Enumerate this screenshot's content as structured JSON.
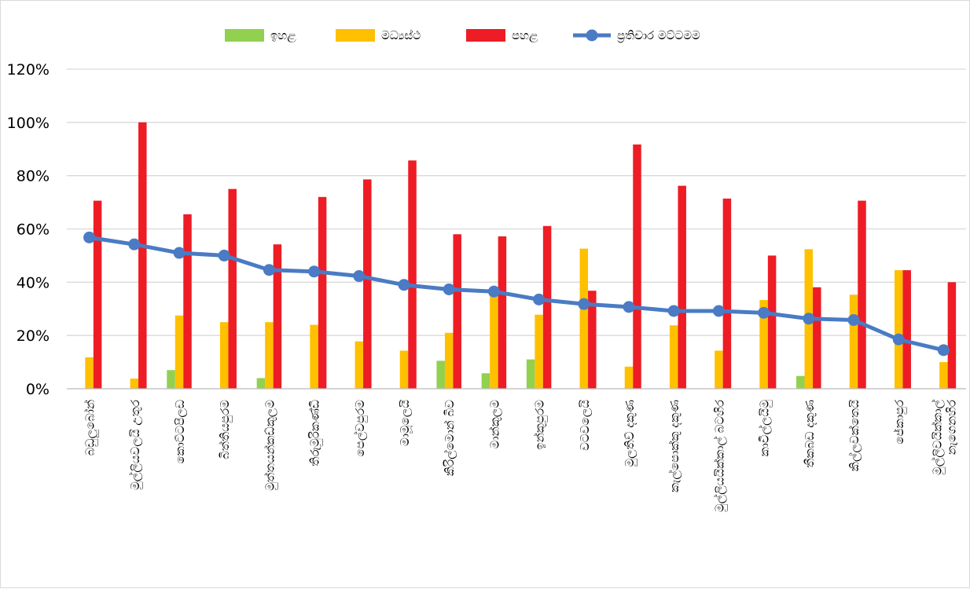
{
  "chart_data": {
    "type": "bar",
    "categories": [
      "බඩුලුබෝන්",
      "මුල්ලියවලයි උතුර",
      "කොට්ටපිලඩ",
      "බිත්තියපුරම",
      "මුත්තයන්කඩ්කුලම",
      "තිරුමුරිකණ්ඩි",
      "පෙල්වපුරම",
      "මාමූලෙයි",
      "කිරිල්මොන් බිව",
      "මාන්කුලම",
      "ඉන්කුපුරම",
      "වටවලෙයි",
      "මුලතිව් දකුණ",
      "කැල්පොක්කු දකුණ",
      "මුල්ලියයික්කාල් බටහිර",
      "කාවිල්ලයිමු",
      "තීකබඩ දකුණ",
      "කිල්ලවක්තෙයි",
      "ජේකාපුර",
      [
        "මුල්ලිවයික්කාල්",
        "නැගෙනහිර"
      ]
    ],
    "series": [
      {
        "name": "ඉහළ",
        "color": "#92d050",
        "values": [
          0,
          0,
          7,
          0,
          4,
          0,
          0,
          0,
          10.5,
          5.8,
          11,
          0,
          0,
          0,
          0,
          0,
          4.8,
          0,
          0,
          0
        ]
      },
      {
        "name": "මධ්‍යස්ථ",
        "color": "#ffc000",
        "values": [
          11.8,
          3.8,
          27.5,
          25,
          25,
          24,
          17.8,
          14.3,
          21,
          37,
          27.8,
          52.6,
          8.3,
          23.8,
          14.3,
          33.3,
          52.4,
          35.3,
          44.5,
          10
        ]
      },
      {
        "name": "පහළ",
        "color": "#ee1c25",
        "values": [
          70.6,
          100,
          65.5,
          75,
          54.2,
          72,
          78.6,
          85.7,
          58,
          57.2,
          61.1,
          36.8,
          91.7,
          76.2,
          71.4,
          50,
          38.1,
          70.6,
          44.5,
          40
        ]
      },
      {
        "name": "ප්‍රතිචාර මට්ටමම",
        "type": "line",
        "color": "#4a7bc4",
        "values": [
          56.8,
          54.2,
          51,
          50,
          44.6,
          44,
          42.3,
          39,
          37.3,
          36.5,
          33.5,
          31.8,
          30.7,
          29.2,
          29.2,
          28.5,
          26.3,
          25.8,
          18.5,
          14.5
        ]
      }
    ],
    "yticks": [
      "0%",
      "20%",
      "40%",
      "60%",
      "80%",
      "100%",
      "120%"
    ],
    "ylim": [
      0,
      120
    ],
    "grid": true,
    "legend_position": "top"
  }
}
